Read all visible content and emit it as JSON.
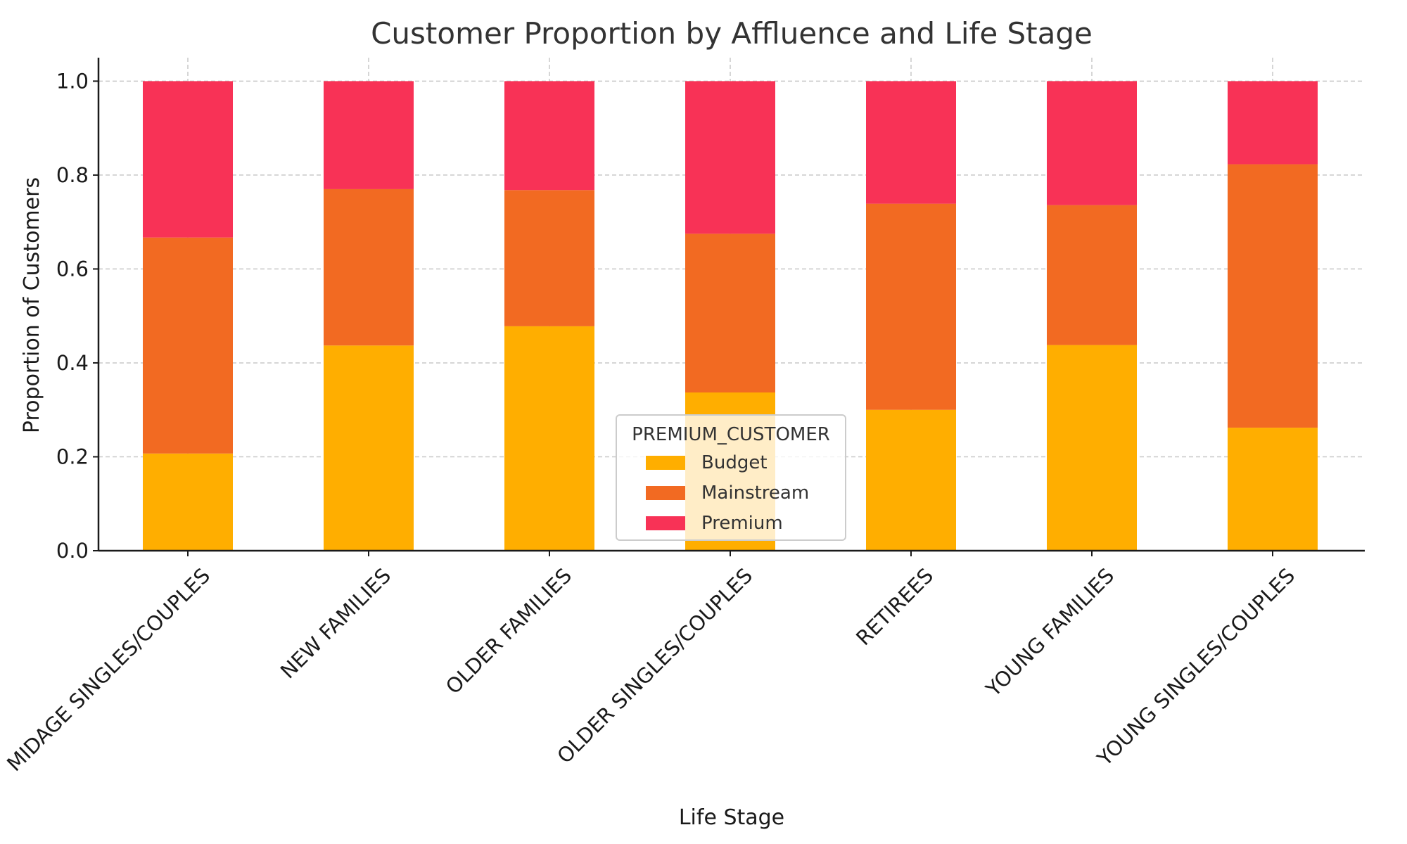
{
  "chart_data": {
    "type": "bar",
    "stacked": true,
    "title": "Customer Proportion by Affluence and Life Stage",
    "xlabel": "Life Stage",
    "ylabel": "Proportion of Customers",
    "ylim": [
      0,
      1.05
    ],
    "yticks": [
      "0.0",
      "0.2",
      "0.4",
      "0.6",
      "0.8",
      "1.0"
    ],
    "grid": true,
    "categories": [
      "MIDAGE SINGLES/COUPLES",
      "NEW FAMILIES",
      "OLDER FAMILIES",
      "OLDER SINGLES/COUPLES",
      "RETIREES",
      "YOUNG FAMILIES",
      "YOUNG SINGLES/COUPLES"
    ],
    "series": [
      {
        "name": "Budget",
        "color": "#FFAE00",
        "values": [
          0.207,
          0.437,
          0.478,
          0.337,
          0.3,
          0.438,
          0.262
        ]
      },
      {
        "name": "Mainstream",
        "color": "#F26A22",
        "values": [
          0.46,
          0.333,
          0.29,
          0.338,
          0.439,
          0.298,
          0.561
        ]
      },
      {
        "name": "Premium",
        "color": "#F83256",
        "values": [
          0.333,
          0.23,
          0.232,
          0.325,
          0.261,
          0.264,
          0.177
        ]
      }
    ],
    "legend": {
      "title": "PREMIUM_CUSTOMER",
      "position": "lower-center"
    }
  }
}
